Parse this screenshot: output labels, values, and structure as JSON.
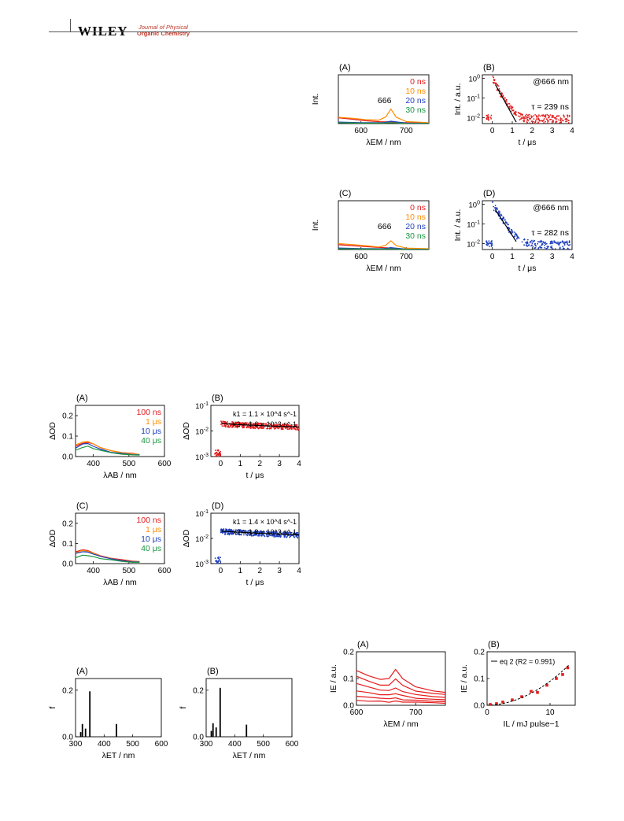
{
  "header": {
    "publisher": "WILEY",
    "journal_line1": "Journal of Physical",
    "journal_line2": "Organic Chemistry"
  },
  "colors": {
    "red": "#e41a1c",
    "orange": "#ff8c00",
    "blue": "#1f3fbf",
    "green": "#1a9641",
    "black": "#000000"
  },
  "chart_data": [
    {
      "id": "emission-A",
      "panel": "(A)",
      "type": "line",
      "xlabel": "λEM / nm",
      "ylabel": "Int.",
      "xlim": [
        550,
        750
      ],
      "xticks": [
        600,
        700
      ],
      "legend": [
        "0 ns",
        "10 ns",
        "20 ns",
        "30 ns"
      ],
      "annotation": "666",
      "series": [
        {
          "name": "0 ns",
          "color": "#e41a1c",
          "x": [
            550,
            580,
            610,
            640,
            660,
            666,
            680,
            710,
            750
          ],
          "y": [
            0.12,
            0.09,
            0.06,
            0.04,
            0.035,
            0.035,
            0.025,
            0.015,
            0.01
          ]
        },
        {
          "name": "10 ns",
          "color": "#ff8c00",
          "x": [
            550,
            580,
            610,
            640,
            655,
            666,
            678,
            700,
            750
          ],
          "y": [
            0.13,
            0.11,
            0.08,
            0.07,
            0.14,
            0.3,
            0.13,
            0.04,
            0.02
          ]
        },
        {
          "name": "20 ns",
          "color": "#1f3fbf",
          "x": [
            550,
            600,
            650,
            666,
            700,
            750
          ],
          "y": [
            0.03,
            0.02,
            0.02,
            0.05,
            0.01,
            0.005
          ]
        },
        {
          "name": "30 ns",
          "color": "#1a9641",
          "x": [
            550,
            600,
            650,
            666,
            700,
            750
          ],
          "y": [
            0.02,
            0.01,
            0.01,
            0.02,
            0.005,
            0.003
          ]
        }
      ],
      "ylim": [
        0,
        1
      ]
    },
    {
      "id": "decay-B",
      "panel": "(B)",
      "type": "scatter",
      "xlabel": "t / μs",
      "ylabel": "Int. / a.u.",
      "xlim": [
        -0.5,
        4
      ],
      "xticks": [
        0,
        1,
        2,
        3,
        4
      ],
      "yscale": "log",
      "ylim": [
        0.005,
        1.5
      ],
      "yticks": [
        "10^0",
        "10^-1",
        "10^-2"
      ],
      "annotations": [
        "@666 nm",
        "τ = 239 ns"
      ],
      "tau_us": 0.239,
      "color": "#e41a1c"
    },
    {
      "id": "emission-C",
      "panel": "(C)",
      "type": "line",
      "xlabel": "λEM / nm",
      "ylabel": "Int.",
      "xlim": [
        550,
        750
      ],
      "xticks": [
        600,
        700
      ],
      "legend": [
        "0 ns",
        "10 ns",
        "20 ns",
        "30 ns"
      ],
      "annotation": "666",
      "series": [
        {
          "name": "0 ns",
          "color": "#e41a1c",
          "x": [
            550,
            580,
            610,
            640,
            660,
            666,
            680,
            710,
            750
          ],
          "y": [
            0.1,
            0.08,
            0.06,
            0.04,
            0.03,
            0.03,
            0.02,
            0.012,
            0.008
          ]
        },
        {
          "name": "10 ns",
          "color": "#ff8c00",
          "x": [
            550,
            580,
            610,
            640,
            655,
            666,
            678,
            700,
            750
          ],
          "y": [
            0.12,
            0.1,
            0.08,
            0.05,
            0.09,
            0.18,
            0.08,
            0.03,
            0.015
          ]
        },
        {
          "name": "20 ns",
          "color": "#1f3fbf",
          "x": [
            550,
            600,
            650,
            666,
            700,
            750
          ],
          "y": [
            0.03,
            0.02,
            0.015,
            0.04,
            0.01,
            0.005
          ]
        },
        {
          "name": "30 ns",
          "color": "#1a9641",
          "x": [
            550,
            600,
            650,
            666,
            700,
            750
          ],
          "y": [
            0.015,
            0.01,
            0.008,
            0.015,
            0.004,
            0.002
          ]
        }
      ],
      "ylim": [
        0,
        1
      ]
    },
    {
      "id": "decay-D",
      "panel": "(D)",
      "type": "scatter",
      "xlabel": "t / μs",
      "ylabel": "Int. / a.u.",
      "xlim": [
        -0.5,
        4
      ],
      "xticks": [
        0,
        1,
        2,
        3,
        4
      ],
      "yscale": "log",
      "ylim": [
        0.005,
        1.5
      ],
      "yticks": [
        "10^0",
        "10^-1",
        "10^-2"
      ],
      "annotations": [
        "@666 nm",
        "τ = 282 ns"
      ],
      "tau_us": 0.282,
      "color": "#1f3fbf"
    },
    {
      "id": "absorption-A",
      "panel": "(A)",
      "type": "line",
      "xlabel": "λAB / nm",
      "ylabel": "ΔOD",
      "xlim": [
        350,
        600
      ],
      "xticks": [
        400,
        500,
        600
      ],
      "ylim": [
        0,
        0.25
      ],
      "yticks": [
        0.0,
        0.1,
        0.2
      ],
      "legend": [
        "100 ns",
        "1 μs",
        "10 μs",
        "40 μs"
      ],
      "series": [
        {
          "name": "100 ns",
          "color": "#e41a1c",
          "x": [
            350,
            370,
            385,
            400,
            420,
            450,
            480,
            510,
            530
          ],
          "y": [
            0.05,
            0.065,
            0.07,
            0.06,
            0.045,
            0.03,
            0.02,
            0.015,
            0.01
          ]
        },
        {
          "name": "1 μs",
          "color": "#ff8c00",
          "x": [
            350,
            370,
            385,
            400,
            420,
            450,
            480,
            510,
            530
          ],
          "y": [
            0.055,
            0.07,
            0.075,
            0.062,
            0.045,
            0.03,
            0.02,
            0.013,
            0.01
          ]
        },
        {
          "name": "10 μs",
          "color": "#1f3fbf",
          "x": [
            350,
            370,
            385,
            400,
            420,
            450,
            480,
            510,
            530
          ],
          "y": [
            0.04,
            0.06,
            0.065,
            0.05,
            0.035,
            0.022,
            0.015,
            0.01,
            0.008
          ]
        },
        {
          "name": "40 μs",
          "color": "#1a9641",
          "x": [
            350,
            370,
            385,
            400,
            420,
            450,
            480,
            510,
            530
          ],
          "y": [
            0.03,
            0.045,
            0.05,
            0.04,
            0.03,
            0.02,
            0.012,
            0.008,
            0.006
          ]
        }
      ]
    },
    {
      "id": "absorption-decay-B",
      "panel": "(B)",
      "type": "scatter",
      "xlabel": "t / μs",
      "ylabel": "ΔOD",
      "xlim": [
        -0.5,
        4
      ],
      "xticks": [
        0,
        1,
        2,
        3,
        4
      ],
      "yscale": "log",
      "ylim": [
        0.001,
        0.1
      ],
      "yticks": [
        "10^-1",
        "10^-2",
        "10^-3"
      ],
      "annotations": [
        "k1 = 1.1 × 10^4 s^-1",
        "k2 = 1.6 × 10^3 s^-1"
      ],
      "k1": 11000,
      "k2": 1600,
      "color": "#e41a1c"
    },
    {
      "id": "absorption-C",
      "panel": "(C)",
      "type": "line",
      "xlabel": "λAB / nm",
      "ylabel": "ΔOD",
      "xlim": [
        350,
        600
      ],
      "xticks": [
        400,
        500,
        600
      ],
      "ylim": [
        0,
        0.25
      ],
      "yticks": [
        0.0,
        0.1,
        0.2
      ],
      "legend": [
        "100 ns",
        "1 μs",
        "10 μs",
        "40 μs"
      ],
      "series": [
        {
          "name": "100 ns",
          "color": "#e41a1c",
          "x": [
            350,
            370,
            385,
            400,
            420,
            450,
            480,
            510,
            530
          ],
          "y": [
            0.06,
            0.07,
            0.065,
            0.055,
            0.04,
            0.028,
            0.018,
            0.012,
            0.01
          ]
        },
        {
          "name": "1 μs",
          "color": "#ff8c00",
          "x": [
            350,
            370,
            385,
            400,
            420,
            450,
            480,
            510,
            530
          ],
          "y": [
            0.055,
            0.065,
            0.06,
            0.05,
            0.038,
            0.026,
            0.017,
            0.012,
            0.009
          ]
        },
        {
          "name": "10 μs",
          "color": "#1f3fbf",
          "x": [
            350,
            370,
            385,
            400,
            420,
            450,
            480,
            510,
            530
          ],
          "y": [
            0.05,
            0.06,
            0.058,
            0.048,
            0.035,
            0.024,
            0.015,
            0.01,
            0.008
          ]
        },
        {
          "name": "40 μs",
          "color": "#1a9641",
          "x": [
            350,
            370,
            385,
            400,
            420,
            450,
            480,
            510,
            530
          ],
          "y": [
            0.03,
            0.04,
            0.04,
            0.035,
            0.025,
            0.018,
            0.012,
            0.008,
            0.006
          ]
        }
      ]
    },
    {
      "id": "absorption-decay-D",
      "panel": "(D)",
      "type": "scatter",
      "xlabel": "t / μs",
      "ylabel": "ΔOD",
      "xlim": [
        -0.5,
        4
      ],
      "xticks": [
        0,
        1,
        2,
        3,
        4
      ],
      "yscale": "log",
      "ylim": [
        0.001,
        0.1
      ],
      "yticks": [
        "10^-1",
        "10^-2",
        "10^-3"
      ],
      "annotations": [
        "k1 = 1.4 × 10^4 s^-1",
        "k2 = 1.8 × 10^3 s^-1"
      ],
      "k1": 14000,
      "k2": 1800,
      "color": "#1f3fbf"
    },
    {
      "id": "oscillator-A",
      "panel": "(A)",
      "type": "bar",
      "xlabel": "λET / nm",
      "ylabel": "f",
      "xlim": [
        300,
        600
      ],
      "xticks": [
        300,
        400,
        500,
        600
      ],
      "ylim": [
        0,
        0.25
      ],
      "yticks": [
        0.0,
        0.2
      ],
      "x": [
        318,
        324,
        335,
        350,
        443
      ],
      "values": [
        0.02,
        0.055,
        0.035,
        0.195,
        0.055
      ]
    },
    {
      "id": "oscillator-B",
      "panel": "(B)",
      "type": "bar",
      "xlabel": "λET / nm",
      "ylabel": "f",
      "xlim": [
        300,
        600
      ],
      "xticks": [
        300,
        400,
        500,
        600
      ],
      "ylim": [
        0,
        0.25
      ],
      "yticks": [
        0.0,
        0.2
      ],
      "x": [
        318,
        324,
        335,
        349,
        441
      ],
      "values": [
        0.025,
        0.058,
        0.04,
        0.21,
        0.052
      ]
    },
    {
      "id": "laser-power-A",
      "panel": "(A)",
      "type": "line",
      "xlabel": "λEM / nm",
      "ylabel": "IE / a.u.",
      "xlim": [
        600,
        750
      ],
      "xticks": [
        600,
        700
      ],
      "ylim": [
        0,
        0.2
      ],
      "yticks": [
        0.0,
        0.1,
        0.2
      ],
      "series": [
        {
          "name": "",
          "color": "#e41a1c",
          "x": [
            600,
            620,
            640,
            655,
            666,
            678,
            700,
            730,
            750
          ],
          "y": [
            0.13,
            0.11,
            0.095,
            0.1,
            0.135,
            0.1,
            0.07,
            0.055,
            0.05
          ]
        },
        {
          "name": "",
          "color": "#e41a1c",
          "x": [
            600,
            620,
            640,
            655,
            666,
            678,
            700,
            730,
            750
          ],
          "y": [
            0.11,
            0.09,
            0.075,
            0.075,
            0.1,
            0.075,
            0.055,
            0.045,
            0.04
          ]
        },
        {
          "name": "",
          "color": "#e41a1c",
          "x": [
            600,
            620,
            640,
            655,
            666,
            678,
            700,
            730,
            750
          ],
          "y": [
            0.08,
            0.07,
            0.055,
            0.055,
            0.065,
            0.05,
            0.04,
            0.033,
            0.03
          ]
        },
        {
          "name": "",
          "color": "#e41a1c",
          "x": [
            600,
            620,
            640,
            655,
            666,
            678,
            700,
            730,
            750
          ],
          "y": [
            0.055,
            0.048,
            0.04,
            0.038,
            0.045,
            0.035,
            0.028,
            0.022,
            0.02
          ]
        },
        {
          "name": "",
          "color": "#e41a1c",
          "x": [
            600,
            620,
            640,
            655,
            666,
            678,
            700,
            730,
            750
          ],
          "y": [
            0.035,
            0.03,
            0.025,
            0.024,
            0.028,
            0.022,
            0.018,
            0.015,
            0.013
          ]
        },
        {
          "name": "",
          "color": "#e41a1c",
          "x": [
            600,
            620,
            640,
            655,
            666,
            678,
            700,
            730,
            750
          ],
          "y": [
            0.02,
            0.017,
            0.014,
            0.013,
            0.015,
            0.012,
            0.01,
            0.008,
            0.007
          ]
        }
      ]
    },
    {
      "id": "laser-power-B",
      "panel": "(B)",
      "type": "scatter",
      "xlabel": "IL / mJ pulse−1",
      "ylabel": "IE / a.u.",
      "xlim": [
        0,
        14
      ],
      "xticks": [
        0,
        10
      ],
      "ylim": [
        0,
        0.2
      ],
      "yticks": [
        0.0,
        0.1,
        0.2
      ],
      "legend": [
        "eq 2 (R2 = 0.991)"
      ],
      "x": [
        0.5,
        1.5,
        2.5,
        4.0,
        5.5,
        7.0,
        8.0,
        9.5,
        11.0,
        12.0,
        12.8
      ],
      "values": [
        0.003,
        0.006,
        0.012,
        0.02,
        0.032,
        0.052,
        0.048,
        0.075,
        0.1,
        0.115,
        0.14
      ]
    }
  ]
}
